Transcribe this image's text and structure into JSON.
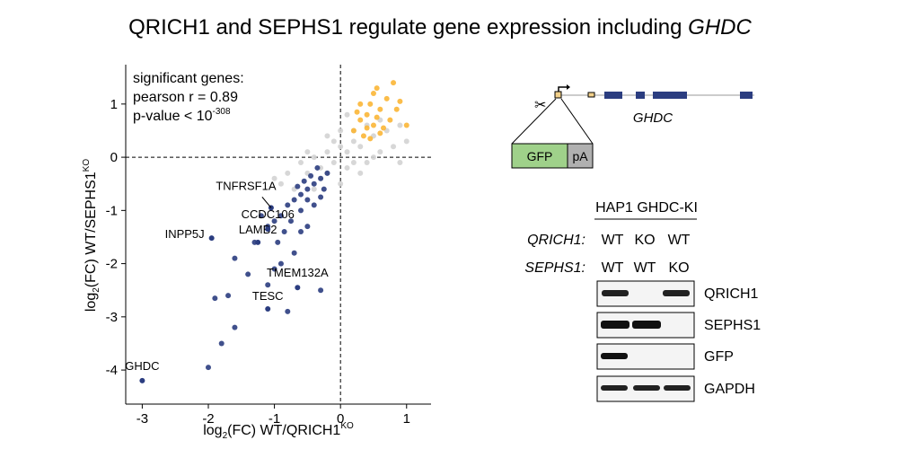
{
  "title": [
    "QRICH1 and SEPHS1 regulate gene expression including",
    "GHDC"
  ],
  "chart_data": {
    "type": "scatter",
    "stats": [
      "significant genes:",
      "pearson r = 0.89",
      "p-value < 10",
      "-308"
    ],
    "xlabel": [
      "log",
      "2",
      "(FC) WT/QRICH1",
      "KO"
    ],
    "ylabel": [
      "log",
      "2",
      "(FC) WT/SEPHS1",
      "KO"
    ],
    "xlim": [
      -3.25,
      1.37
    ],
    "ylim": [
      -4.64,
      1.74
    ],
    "xticks": [
      -3,
      -2,
      -1,
      0,
      1
    ],
    "yticks": [
      -4,
      -3,
      -2,
      -1,
      0,
      1
    ],
    "vline": 0,
    "hline": 0,
    "series": [
      {
        "color": "#d3d3d3",
        "x": [
          -0.9,
          -0.7,
          -0.5,
          -0.3,
          -0.1,
          0.1,
          0.3,
          0.5,
          0.7,
          0.9,
          -0.6,
          -0.4,
          -0.2,
          0,
          0.2,
          0.4,
          0.6,
          -0.8,
          -0.3,
          0.1,
          0.5,
          0.8,
          -0.2,
          0.2,
          0,
          0.3,
          -0.5,
          1.0,
          -1.0,
          0.6,
          0.1,
          -0.1,
          0.4,
          -0.4,
          0.9,
          0.0,
          0.2,
          -0.2
        ],
        "values": [
          -0.5,
          -0.6,
          -0.3,
          -0.2,
          -0.1,
          0.1,
          0.2,
          0.4,
          0.5,
          0.6,
          -0.1,
          0.0,
          0.1,
          0.2,
          0.3,
          -0.1,
          0.1,
          -0.3,
          -0.4,
          -0.2,
          0.0,
          0.2,
          -0.3,
          0.5,
          0.5,
          -0.3,
          0.1,
          0.3,
          -0.4,
          0.7,
          0.8,
          0.3,
          0.6,
          -0.6,
          -0.1,
          -0.5,
          -0.1,
          0.4
        ]
      },
      {
        "color": "#fbb636",
        "x": [
          0.2,
          0.3,
          0.4,
          0.5,
          0.6,
          0.35,
          0.45,
          0.55,
          0.25,
          0.65,
          0.7,
          0.4,
          0.5,
          0.3,
          0.6,
          0.75,
          0.8,
          0.85,
          0.55,
          0.45,
          0.9,
          1.0
        ],
        "values": [
          0.5,
          0.7,
          0.8,
          0.6,
          0.9,
          0.4,
          1.0,
          0.75,
          0.85,
          0.55,
          1.1,
          0.55,
          1.2,
          1.0,
          0.45,
          0.7,
          1.4,
          0.9,
          1.3,
          0.35,
          1.05,
          0.6
        ]
      },
      {
        "color": "#2b3d80",
        "x": [
          -0.2,
          -0.3,
          -0.4,
          -0.5,
          -0.6,
          -0.7,
          -0.8,
          -0.35,
          -0.45,
          -0.55,
          -0.65,
          -0.25,
          -0.5,
          -0.4,
          -0.3,
          -0.6,
          -0.9,
          -1.0,
          -1.1,
          -0.75,
          -0.85,
          -1.2,
          -1.3,
          -0.95,
          -0.7,
          -1.6,
          -1.7,
          -1.4,
          -1.0,
          -0.9,
          -0.6,
          -0.5,
          -1.8,
          -2.0,
          -1.1,
          -0.8,
          -0.3,
          -1.9,
          -1.6
        ],
        "values": [
          -0.3,
          -0.4,
          -0.5,
          -0.6,
          -0.7,
          -0.8,
          -0.9,
          -0.2,
          -0.35,
          -0.45,
          -0.55,
          -0.6,
          -0.8,
          -0.9,
          -0.75,
          -1.0,
          -1.1,
          -1.2,
          -1.3,
          -1.2,
          -1.4,
          -1.1,
          -1.6,
          -1.6,
          -1.8,
          -1.9,
          -2.6,
          -2.2,
          -2.1,
          -2.0,
          -1.4,
          -1.3,
          -3.5,
          -3.95,
          -2.4,
          -2.9,
          -2.5,
          -2.65,
          -3.2
        ]
      }
    ],
    "annotations": [
      {
        "text": "GHDC",
        "x": -3.0,
        "y": -4.2
      },
      {
        "text": "TESC",
        "x": -1.1,
        "y": -2.85
      },
      {
        "text": "TMEM132A",
        "x": -0.65,
        "y": -2.45
      },
      {
        "text": "LAMB2",
        "x": -1.25,
        "y": -1.6
      },
      {
        "text": "INPP5J",
        "x": -1.95,
        "y": -1.52
      },
      {
        "text": "CCDC106",
        "x": -1.1,
        "y": -1.35
      },
      {
        "text": "TNFRSF1A",
        "x": -1.05,
        "y": -0.95
      }
    ]
  },
  "diagram": {
    "gene": "GHDC",
    "boxes": [
      "GFP",
      "pA"
    ]
  },
  "blot": {
    "header": "HAP1 GHDC-KI",
    "rows": [
      {
        "label": "QRICH1:",
        "cells": [
          "WT",
          "KO",
          "WT"
        ]
      },
      {
        "label": "SEPHS1:",
        "cells": [
          "WT",
          "WT",
          "KO"
        ]
      }
    ],
    "bands": [
      "QRICH1",
      "SEPHS1",
      "GFP",
      "GAPDH"
    ]
  }
}
